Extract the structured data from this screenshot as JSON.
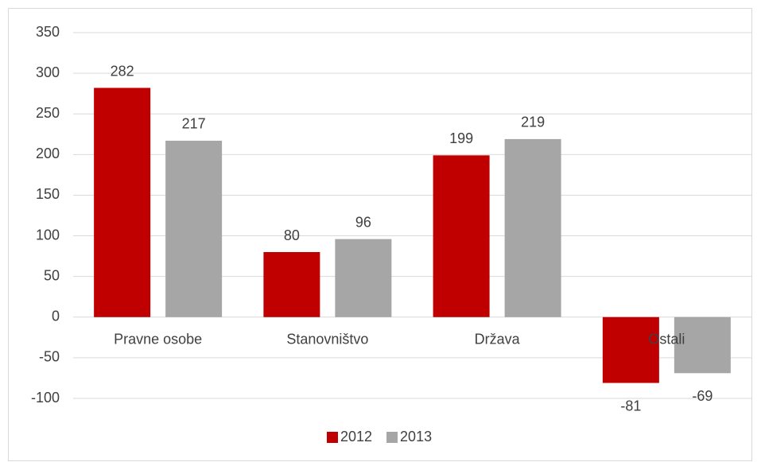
{
  "chart_data": {
    "type": "bar",
    "categories": [
      "Pravne osobe",
      "Stanovništvo",
      "Država",
      "Ostali"
    ],
    "series": [
      {
        "name": "2012",
        "color": "#c00000",
        "values": [
          282,
          80,
          199,
          -81
        ]
      },
      {
        "name": "2013",
        "color": "#a6a6a6",
        "values": [
          217,
          96,
          219,
          -69
        ]
      }
    ],
    "ylim": [
      -100,
      350
    ],
    "yticks": [
      -100,
      -50,
      0,
      50,
      100,
      150,
      200,
      250,
      300,
      350
    ],
    "grid": true,
    "legend": "bottom"
  }
}
